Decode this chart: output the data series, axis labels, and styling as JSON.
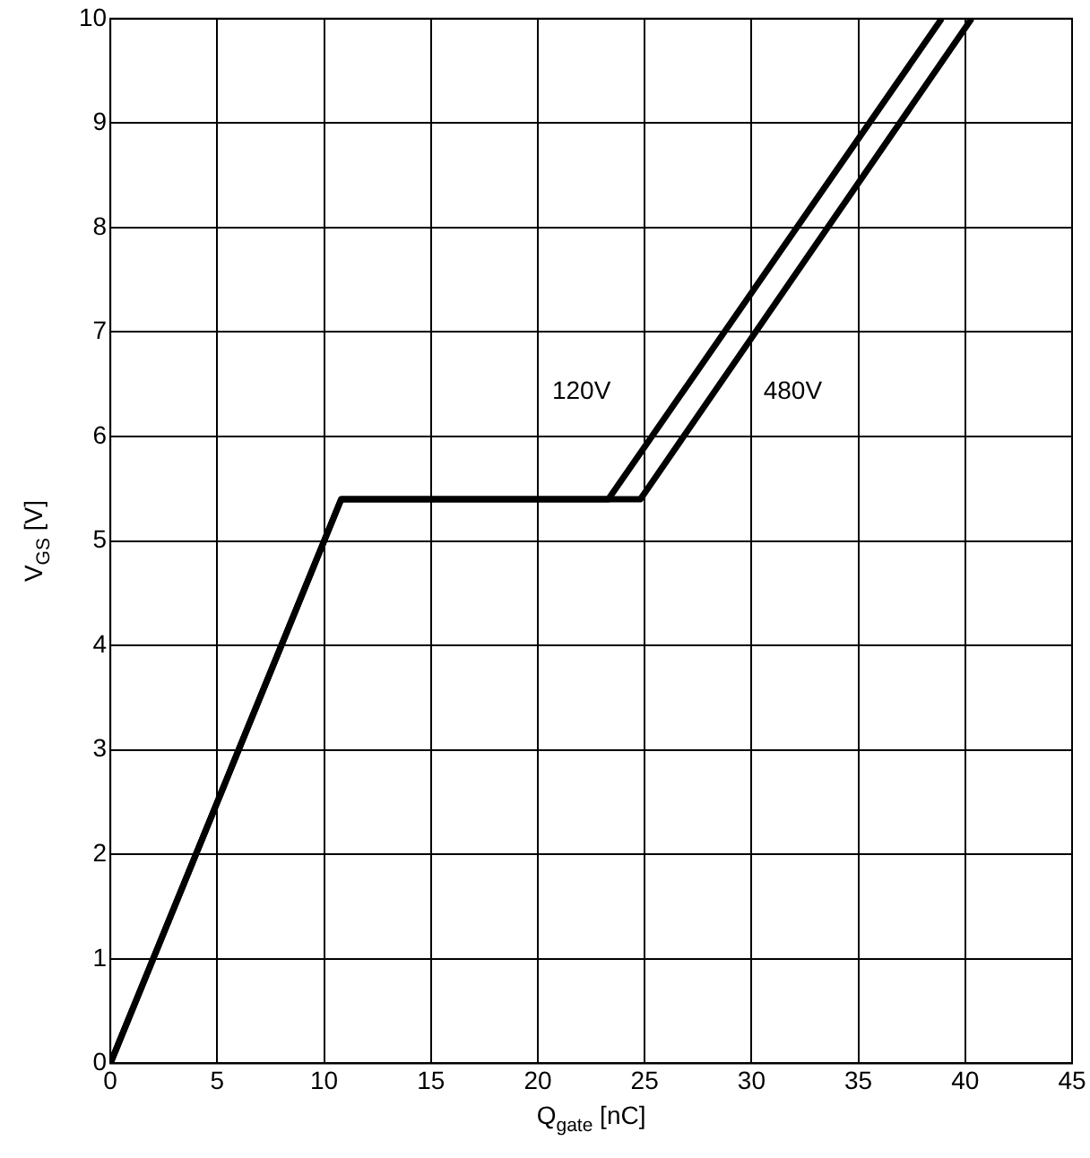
{
  "chart_data": {
    "type": "line",
    "xlabel": "Q$_{gate}$ [nC]",
    "ylabel": "V$_{GS}$ [V]",
    "series": [
      {
        "name": "120V",
        "color": "#000000",
        "x": [
          0,
          10.8,
          23.3,
          38.9
        ],
        "values": [
          0,
          5.4,
          5.4,
          10
        ]
      },
      {
        "name": "480V",
        "color": "#000000",
        "x": [
          0,
          10.8,
          24.8,
          40.3
        ],
        "values": [
          0,
          5.4,
          5.4,
          10
        ]
      }
    ],
    "xlim": [
      0,
      45
    ],
    "xticks": [
      0,
      5,
      10,
      15,
      20,
      25,
      30,
      35,
      40,
      45
    ],
    "ylim": [
      0,
      10
    ],
    "yticks": [
      0,
      1,
      2,
      3,
      4,
      5,
      6,
      7,
      8,
      9,
      10
    ],
    "grid": true,
    "legend": false,
    "marker": "none",
    "line_style": "solid"
  }
}
